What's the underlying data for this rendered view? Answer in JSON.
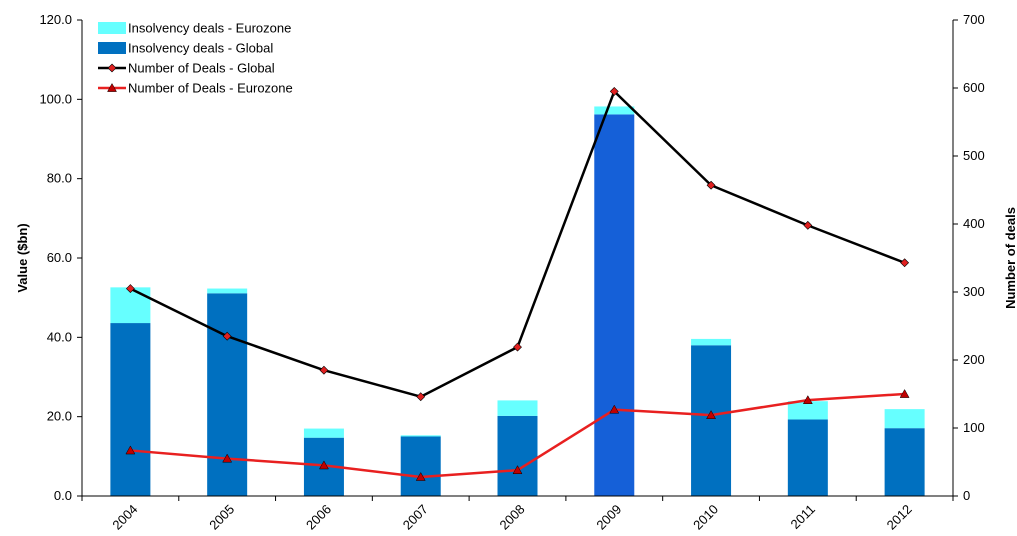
{
  "chart_data": {
    "type": "bar",
    "categories": [
      "2004",
      "2005",
      "2006",
      "2007",
      "2008",
      "2009",
      "2010",
      "2011",
      "2012"
    ],
    "bar_series": [
      {
        "name": "Insolvency deals - Global",
        "values": [
          43.6,
          51.1,
          14.7,
          15.0,
          20.2,
          96.2,
          38.0,
          19.3,
          17.1
        ],
        "color": "#0070C0",
        "highlight_color": "#1560D8"
      },
      {
        "name": "Insolvency deals - Eurozone",
        "values": [
          9.0,
          1.2,
          2.3,
          0.3,
          3.9,
          2.0,
          1.6,
          4.6,
          4.8
        ],
        "color": "#66FFFF"
      }
    ],
    "line_series": [
      {
        "name": "Number of Deals - Global",
        "values": [
          305,
          235,
          185,
          146,
          219,
          595,
          457,
          398,
          343
        ],
        "color": "#000000",
        "marker": "diamond",
        "marker_color": "#E02020"
      },
      {
        "name": "Number of Deals - Eurozone",
        "values": [
          67,
          55,
          45,
          28,
          38,
          127,
          119,
          141,
          150
        ],
        "color": "#E82020",
        "marker": "triangle",
        "marker_color": "#C00000"
      }
    ],
    "legend_order": [
      "Insolvency deals - Eurozone",
      "Insolvency deals - Global",
      "Number of Deals - Global",
      "Number of Deals - Eurozone"
    ],
    "legend_position": "top-left",
    "highlight_category": "2009",
    "ylabel": "Value ($bn)",
    "y2label": "Number of deals",
    "ylim": [
      0,
      120
    ],
    "y2lim": [
      0,
      700
    ],
    "yticks": [
      "0.0",
      "20.0",
      "40.0",
      "60.0",
      "80.0",
      "100.0",
      "120.0"
    ],
    "y2ticks": [
      "0",
      "100",
      "200",
      "300",
      "400",
      "500",
      "600",
      "700"
    ],
    "grid": false
  }
}
